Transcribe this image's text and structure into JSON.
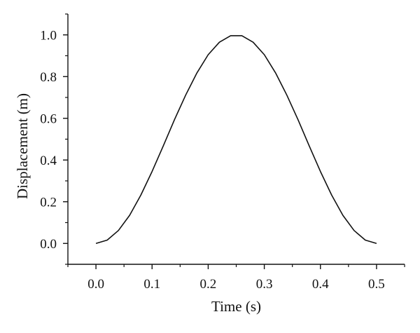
{
  "chart_data": {
    "type": "line",
    "xlabel": "Time (s)",
    "ylabel": "Displacement (m)",
    "xlim": [
      -0.05,
      0.55
    ],
    "ylim": [
      -0.1,
      1.1
    ],
    "x_ticks": [
      0.0,
      0.1,
      0.2,
      0.3,
      0.4,
      0.5
    ],
    "x_tick_labels": [
      "0.0",
      "0.1",
      "0.2",
      "0.3",
      "0.4",
      "0.5"
    ],
    "y_ticks": [
      0.0,
      0.2,
      0.4,
      0.6,
      0.8,
      1.0
    ],
    "y_tick_labels": [
      "0.0",
      "0.2",
      "0.4",
      "0.6",
      "0.8",
      "1.0"
    ],
    "grid": false,
    "legend": "none",
    "line_color": "#111111",
    "series": [
      {
        "x": [
          0.0,
          0.02,
          0.04,
          0.06,
          0.08,
          0.1,
          0.12,
          0.14,
          0.16,
          0.18,
          0.2,
          0.22,
          0.24,
          0.26,
          0.28,
          0.3,
          0.32,
          0.34,
          0.36,
          0.38,
          0.4,
          0.42,
          0.44,
          0.46,
          0.48,
          0.5
        ],
        "values": [
          0.0,
          0.016,
          0.062,
          0.135,
          0.232,
          0.345,
          0.468,
          0.594,
          0.712,
          0.818,
          0.905,
          0.965,
          0.996,
          0.996,
          0.965,
          0.905,
          0.818,
          0.712,
          0.594,
          0.468,
          0.345,
          0.232,
          0.135,
          0.062,
          0.016,
          0.0
        ]
      }
    ]
  }
}
